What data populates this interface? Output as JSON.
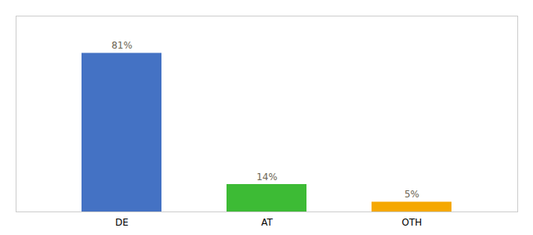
{
  "chart_data": {
    "type": "bar",
    "categories": [
      "DE",
      "AT",
      "OTH"
    ],
    "values": [
      81,
      14,
      5
    ],
    "value_labels": [
      "81%",
      "14%",
      "5%"
    ],
    "colors": [
      "#4472c4",
      "#3dbb35",
      "#f5a800"
    ],
    "ylim": [
      0,
      100
    ],
    "data_labels": true,
    "tick_labels": "x",
    "grid": false
  }
}
